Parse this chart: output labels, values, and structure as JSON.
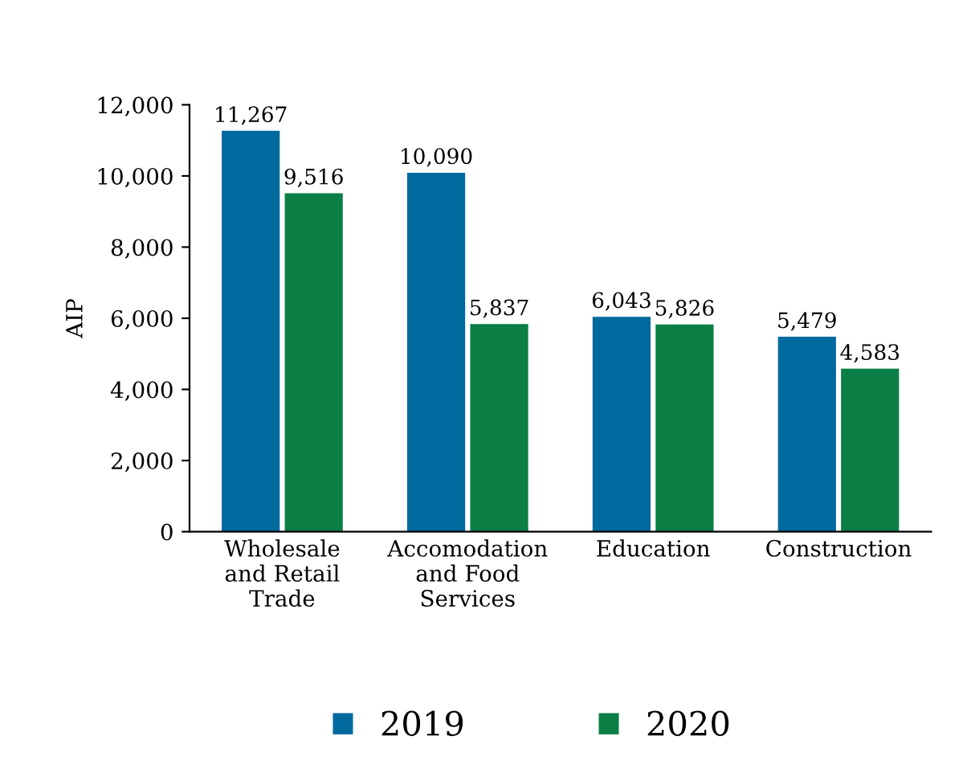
{
  "chart_data": {
    "type": "bar",
    "ylabel": "AIP",
    "categories": [
      "Wholesale\nand Retail\nTrade",
      "Accomodation\nand Food\nServices",
      "Education",
      "Construction"
    ],
    "series": [
      {
        "name": "2019",
        "color": "#00699e",
        "values": [
          11267,
          10090,
          6043,
          5479
        ],
        "value_labels": [
          "11,267",
          "10,090",
          "6,043",
          "5,479"
        ]
      },
      {
        "name": "2020",
        "color": "#0b7f46",
        "values": [
          9516,
          5837,
          5826,
          4583
        ],
        "value_labels": [
          "9,516",
          "5,837",
          "5,826",
          "4,583"
        ]
      }
    ],
    "ylim": [
      0,
      12000
    ],
    "yticks": [
      {
        "value": 0,
        "label": "0"
      },
      {
        "value": 2000,
        "label": "2,000"
      },
      {
        "value": 4000,
        "label": "4,000"
      },
      {
        "value": 6000,
        "label": "6,000"
      },
      {
        "value": 8000,
        "label": "8,000"
      },
      {
        "value": 10000,
        "label": "10,000"
      },
      {
        "value": 12000,
        "label": "12,000"
      }
    ],
    "grid": false,
    "legend": "bottom"
  }
}
